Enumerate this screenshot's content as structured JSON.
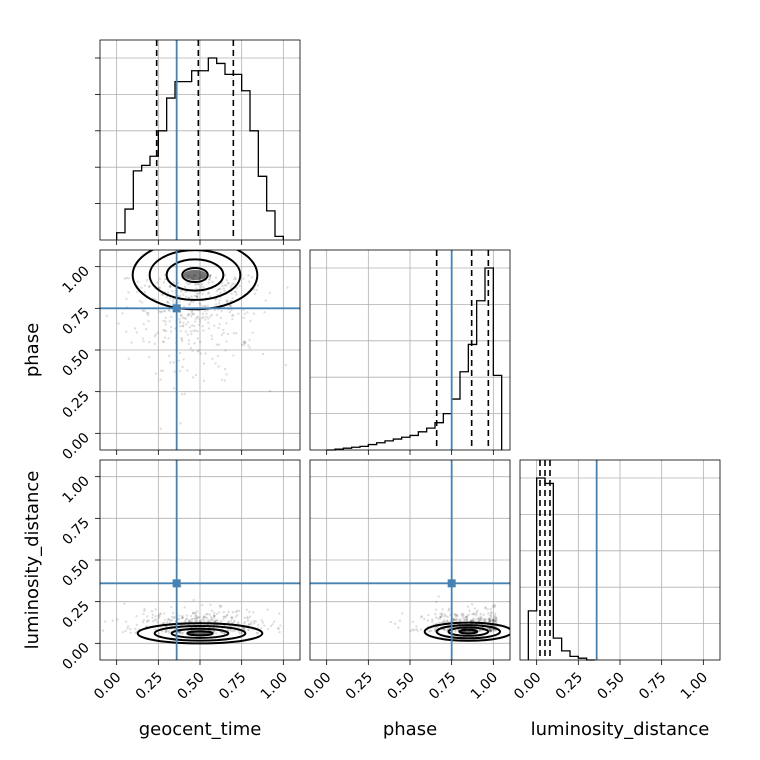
{
  "colors": {
    "truth": "#4682b4",
    "contour": "#000000",
    "grid": "#b0b0b0"
  },
  "chart_data": {
    "type": "corner",
    "parameters": [
      "geocent_time",
      "phase",
      "luminosity_distance"
    ],
    "axis_labels": {
      "geocent_time": "geocent_time",
      "phase": "phase",
      "luminosity_distance": "luminosity_distance"
    },
    "ticks": [
      0.0,
      0.25,
      0.5,
      0.75,
      1.0
    ],
    "tick_labels": [
      "0.00",
      "0.25",
      "0.50",
      "0.75",
      "1.00"
    ],
    "ranges": {
      "geocent_time": [
        -0.1,
        1.1
      ],
      "phase": [
        -0.1,
        1.1
      ],
      "luminosity_distance": [
        -0.1,
        1.1
      ]
    },
    "truths": {
      "geocent_time": 0.36,
      "phase": 0.75,
      "luminosity_distance": 0.36
    },
    "grid": true,
    "histograms": {
      "geocent_time": {
        "edges": [
          0.0,
          0.05,
          0.1,
          0.15,
          0.2,
          0.25,
          0.3,
          0.35,
          0.4,
          0.45,
          0.5,
          0.55,
          0.6,
          0.65,
          0.7,
          0.75,
          0.8,
          0.85,
          0.9,
          0.95,
          1.0
        ],
        "counts": [
          0.04,
          0.17,
          0.38,
          0.41,
          0.46,
          0.6,
          0.78,
          0.87,
          0.87,
          0.93,
          0.93,
          1.0,
          0.97,
          0.91,
          0.91,
          0.82,
          0.6,
          0.35,
          0.16,
          0.02
        ],
        "quantiles": [
          0.24,
          0.49,
          0.7
        ]
      },
      "phase": {
        "edges": [
          0.0,
          0.05,
          0.1,
          0.15,
          0.2,
          0.25,
          0.3,
          0.35,
          0.4,
          0.45,
          0.5,
          0.55,
          0.6,
          0.65,
          0.7,
          0.75,
          0.8,
          0.85,
          0.9,
          0.95,
          1.0,
          1.05
        ],
        "counts": [
          0.0,
          0.005,
          0.01,
          0.015,
          0.02,
          0.03,
          0.04,
          0.05,
          0.06,
          0.07,
          0.08,
          0.1,
          0.12,
          0.15,
          0.2,
          0.28,
          0.43,
          0.58,
          0.82,
          1.0,
          0.41
        ],
        "quantiles": [
          0.66,
          0.87,
          0.97
        ]
      },
      "luminosity_distance": {
        "edges": [
          -0.05,
          0.0,
          0.05,
          0.1,
          0.15,
          0.2,
          0.25,
          0.3,
          0.35
        ],
        "counts": [
          0.27,
          1.0,
          0.97,
          0.12,
          0.05,
          0.02,
          0.01,
          0.0
        ],
        "quantiles": [
          0.02,
          0.05,
          0.08
        ]
      }
    },
    "pair_plots": [
      {
        "x": "geocent_time",
        "y": "phase",
        "core": [
          0.47,
          0.95
        ],
        "spread": [
          0.2,
          0.17
        ]
      },
      {
        "x": "geocent_time",
        "y": "luminosity_distance",
        "core": [
          0.5,
          0.06
        ],
        "spread": [
          0.2,
          0.05
        ]
      },
      {
        "x": "phase",
        "y": "luminosity_distance",
        "core": [
          0.85,
          0.07
        ],
        "spread": [
          0.14,
          0.045
        ]
      }
    ]
  }
}
